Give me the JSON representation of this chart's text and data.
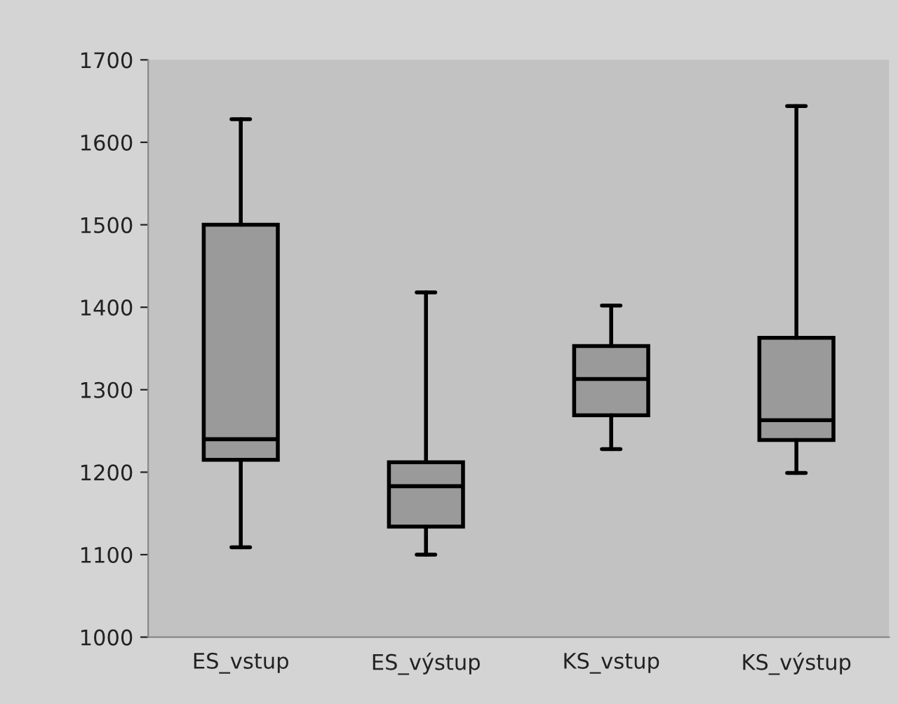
{
  "chart_data": {
    "type": "box",
    "categories": [
      "ES_vstup",
      "ES_výstup",
      "KS_vstup",
      "KS_výstup"
    ],
    "color": "#9a9a9a",
    "boxes": [
      {
        "low": 1109,
        "q1": 1215,
        "median": 1240,
        "q3": 1500,
        "high": 1628
      },
      {
        "low": 1100,
        "q1": 1134,
        "median": 1183,
        "q3": 1212,
        "high": 1418
      },
      {
        "low": 1228,
        "q1": 1269,
        "median": 1313,
        "q3": 1353,
        "high": 1402
      },
      {
        "low": 1199,
        "q1": 1239,
        "median": 1263,
        "q3": 1363,
        "high": 1644
      }
    ],
    "ylim": [
      1000,
      1700
    ],
    "yticks": [
      1000,
      1100,
      1200,
      1300,
      1400,
      1500,
      1600,
      1700
    ],
    "grid": false,
    "legend": false
  }
}
